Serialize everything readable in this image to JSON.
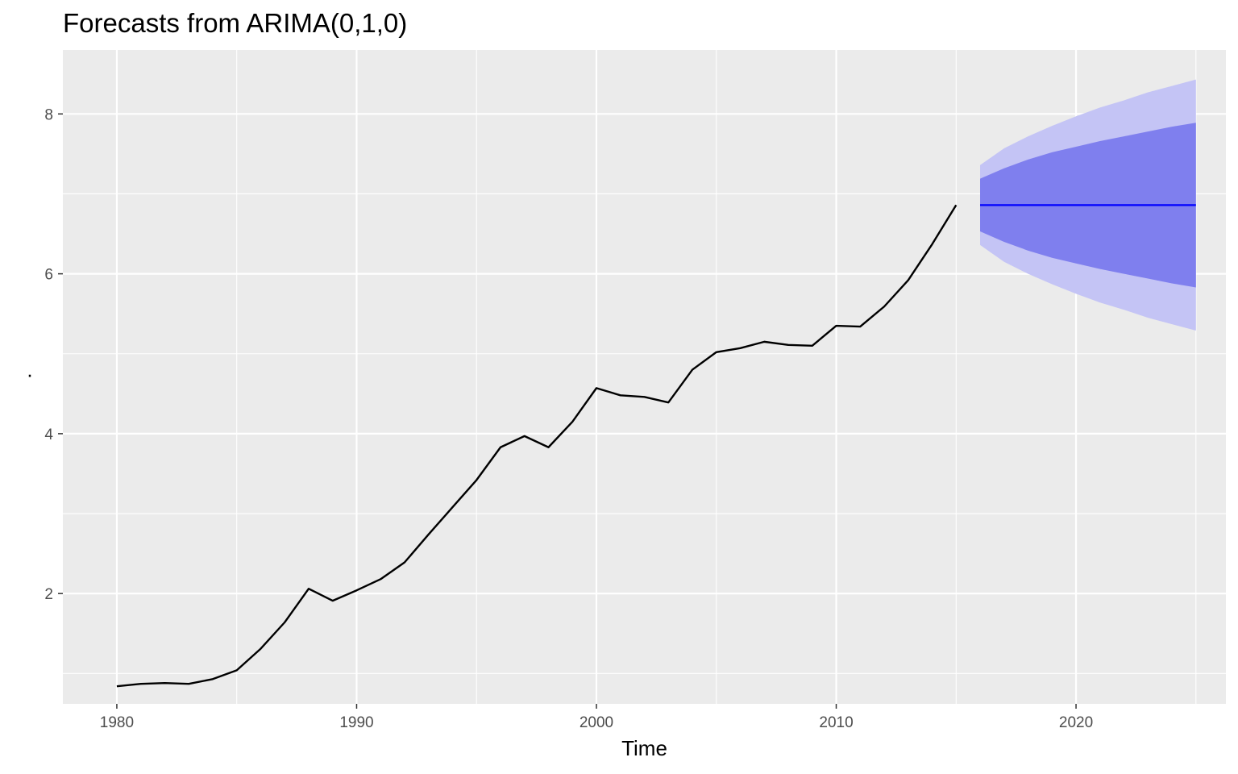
{
  "chart_data": {
    "type": "line",
    "title": "Forecasts from ARIMA(0,1,0)",
    "xlabel": "Time",
    "ylabel": ".",
    "xlim": [
      1977.75,
      2026.25
    ],
    "ylim": [
      0.62,
      8.8
    ],
    "x_ticks": [
      1980,
      1990,
      2000,
      2010,
      2020
    ],
    "y_ticks": [
      2,
      4,
      6,
      8
    ],
    "grid": true,
    "legend": "none",
    "colors": {
      "panel": "#ebebeb",
      "grid": "#ffffff",
      "history_line": "#000000",
      "forecast_line": "#0000ff",
      "band_95": "#c4c4f5",
      "band_80": "#7f7fee"
    },
    "series": [
      {
        "x": [
          1980,
          1981,
          1982,
          1983,
          1984,
          1985,
          1986,
          1987,
          1988,
          1989,
          1990,
          1991,
          1992,
          1993,
          1994,
          1995,
          1996,
          1997,
          1998,
          1999,
          2000,
          2001,
          2002,
          2003,
          2004,
          2005,
          2006,
          2007,
          2008,
          2009,
          2010,
          2011,
          2012,
          2013,
          2014,
          2015
        ],
        "values": [
          0.84,
          0.87,
          0.88,
          0.87,
          0.93,
          1.04,
          1.31,
          1.64,
          2.06,
          1.91,
          2.04,
          2.18,
          2.39,
          2.74,
          3.08,
          3.42,
          3.83,
          3.97,
          3.83,
          4.15,
          4.57,
          4.48,
          4.46,
          4.39,
          4.8,
          5.02,
          5.07,
          5.15,
          5.11,
          5.1,
          5.35,
          5.34,
          5.59,
          5.92,
          6.37,
          6.86
        ]
      },
      {
        "x": [
          2016,
          2017,
          2018,
          2019,
          2020,
          2021,
          2022,
          2023,
          2024,
          2025
        ],
        "values": [
          6.86,
          6.86,
          6.86,
          6.86,
          6.86,
          6.86,
          6.86,
          6.86,
          6.86,
          6.86
        ],
        "lower_80": [
          6.53,
          6.4,
          6.29,
          6.2,
          6.13,
          6.06,
          6.0,
          5.94,
          5.88,
          5.83
        ],
        "upper_80": [
          7.19,
          7.32,
          7.43,
          7.52,
          7.59,
          7.66,
          7.72,
          7.78,
          7.84,
          7.89
        ],
        "lower_95": [
          6.36,
          6.15,
          6.0,
          5.87,
          5.75,
          5.64,
          5.55,
          5.45,
          5.37,
          5.29
        ],
        "upper_95": [
          7.36,
          7.57,
          7.72,
          7.85,
          7.97,
          8.08,
          8.17,
          8.27,
          8.35,
          8.43
        ]
      }
    ]
  }
}
